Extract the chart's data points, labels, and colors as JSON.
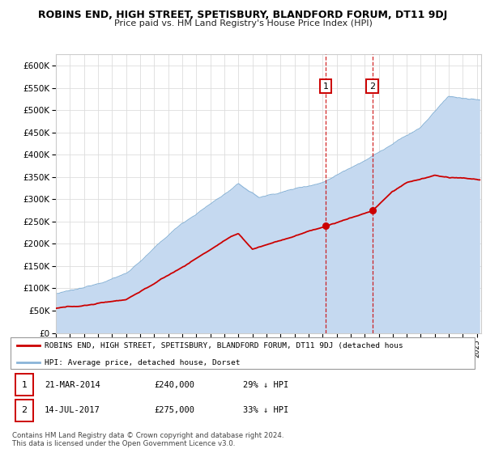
{
  "title": "ROBINS END, HIGH STREET, SPETISBURY, BLANDFORD FORUM, DT11 9DJ",
  "subtitle": "Price paid vs. HM Land Registry's House Price Index (HPI)",
  "hpi_label": "HPI: Average price, detached house, Dorset",
  "property_label": "ROBINS END, HIGH STREET, SPETISBURY, BLANDFORD FORUM, DT11 9DJ (detached hous",
  "footer": "Contains HM Land Registry data © Crown copyright and database right 2024.\nThis data is licensed under the Open Government Licence v3.0.",
  "sales": [
    {
      "date_num": 2014.22,
      "price": 240000,
      "label": "1",
      "date_str": "21-MAR-2014",
      "pct": "29% ↓ HPI"
    },
    {
      "date_num": 2017.54,
      "price": 275000,
      "label": "2",
      "date_str": "14-JUL-2017",
      "pct": "33% ↓ HPI"
    }
  ],
  "hpi_color": "#c5d9f0",
  "hpi_line_color": "#8ab4d8",
  "property_color": "#cc0000",
  "sale_marker_color": "#cc0000",
  "vline_color": "#cc0000",
  "box_color": "#cc0000",
  "ylim": [
    0,
    625000
  ],
  "yticks": [
    0,
    50000,
    100000,
    150000,
    200000,
    250000,
    300000,
    350000,
    400000,
    450000,
    500000,
    550000,
    600000
  ],
  "background_color": "#ffffff",
  "grid_color": "#dddddd",
  "xlim_start": 1995,
  "xlim_end": 2025.3
}
